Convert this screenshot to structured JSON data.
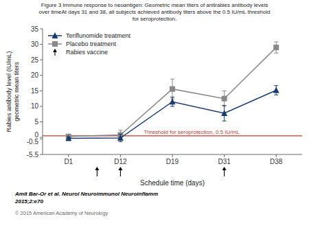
{
  "chart_data": {
    "type": "line",
    "title": "Figure 3 Immune response to neoantigen: Geometric mean titers of antirabies antibody levels\nover timeAt days 31 and 38, all subjects achieved antibody titers above the 0.5 IU/mL threshold\nfor seroprotection.",
    "x_label": "Schedule time (days)",
    "y_label": "Rabies antibody level (IU/mL)\ngeometric mean titers",
    "categories": [
      "D1",
      "D12",
      "D19",
      "D31",
      "D38"
    ],
    "series": [
      {
        "name": "Teriflunomide treatment",
        "color": "#1a3a6e",
        "marker": "triangle",
        "values": [
          -0.3,
          -0.2,
          11.5,
          7.8,
          15.2
        ],
        "error_low": [
          0.4,
          1.2,
          1.5,
          2.5,
          1.5
        ],
        "error_high": [
          0.4,
          1.2,
          1.5,
          2.5,
          1.5
        ]
      },
      {
        "name": "Placebo treatment",
        "color": "#888888",
        "marker": "square",
        "values": [
          0.3,
          0.8,
          15.6,
          12.5,
          29.0
        ],
        "error_low": [
          0.5,
          1.5,
          3.2,
          2.5,
          1.8
        ],
        "error_high": [
          0.5,
          1.5,
          3.2,
          2.5,
          1.8
        ]
      }
    ],
    "ylim": [
      -5.5,
      35
    ],
    "yticks": [
      -5.5,
      -0.5,
      0,
      5,
      10,
      15,
      20,
      25,
      30,
      35
    ],
    "threshold": {
      "value": 0.5,
      "label": "Threshold for seroprotection, 0.5 IU/mL",
      "color": "#c0392b"
    },
    "vaccine_arrows": {
      "label": "Rabies vaccine",
      "x": [
        0.55,
        1.0,
        3.0
      ]
    },
    "footnotes": [
      "Amit Bar-Or et al. Neurol Neuroimmunol Neuroinflamm",
      "2015;2:e70",
      "© 2015 American Academy of Neurology"
    ],
    "grid": false,
    "legend": "upper left"
  }
}
